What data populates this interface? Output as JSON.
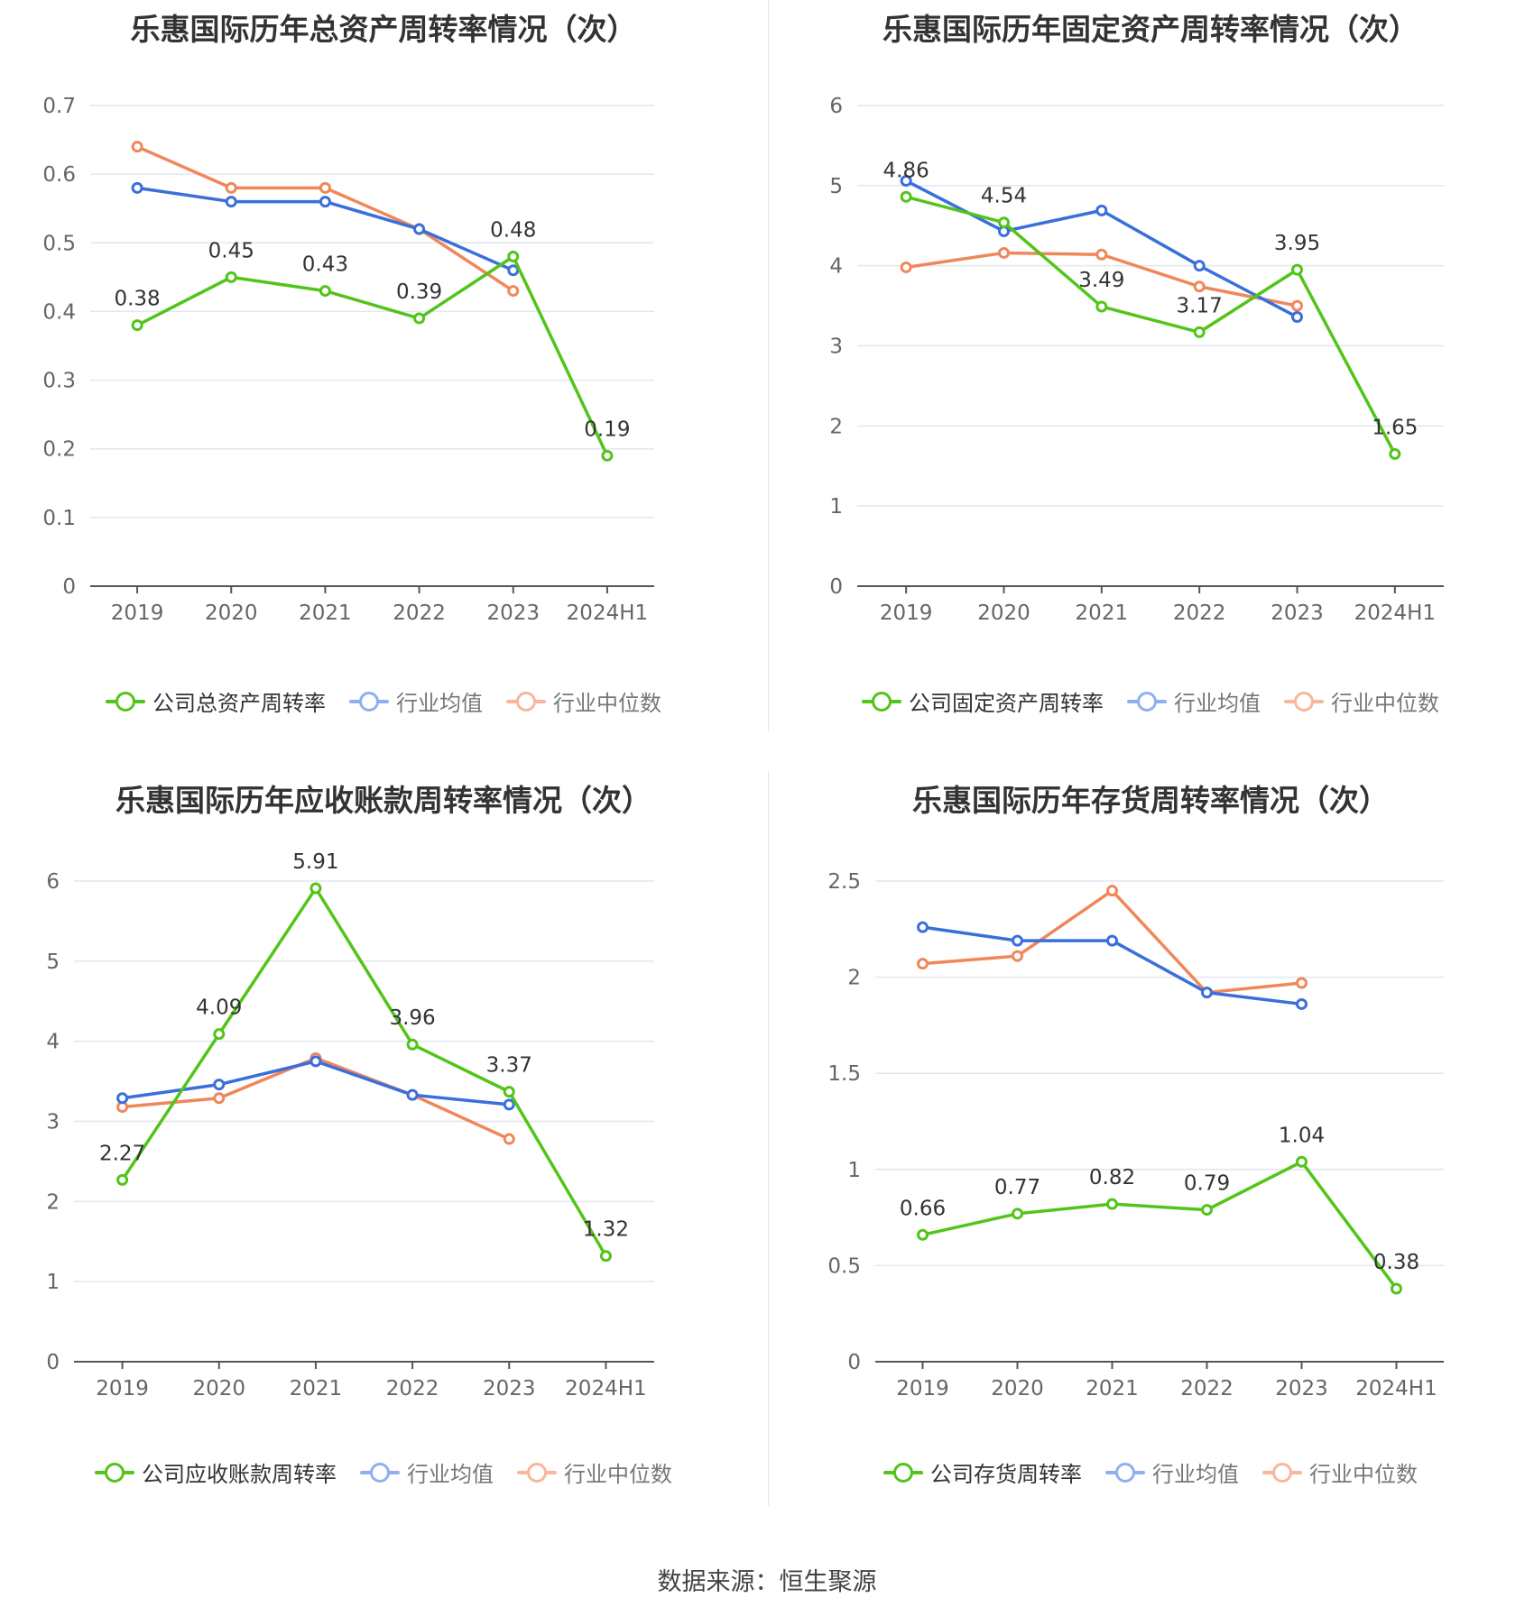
{
  "footer": {
    "source": "数据来源：恒生聚源"
  },
  "colors": {
    "company": "#52c41a",
    "industry_avg": "#3a6fdb",
    "industry_median": "#f0875a"
  },
  "chart_data": [
    {
      "type": "line",
      "title": "乐惠国际历年总资产周转率情况（次）",
      "categories": [
        "2019",
        "2020",
        "2021",
        "2022",
        "2023",
        "2024H1"
      ],
      "ylim": [
        0,
        0.7
      ],
      "yticks": [
        "0",
        "0.1",
        "0.2",
        "0.3",
        "0.4",
        "0.5",
        "0.6",
        "0.7"
      ],
      "grid": true,
      "legend_position": "bottom",
      "series": [
        {
          "name": "公司总资产周转率",
          "values": [
            0.38,
            0.45,
            0.43,
            0.39,
            0.48,
            0.19
          ],
          "labels": [
            "0.38",
            "0.45",
            "0.43",
            "0.39",
            "0.48",
            "0.19"
          ]
        },
        {
          "name": "行业均值",
          "values": [
            0.58,
            0.56,
            0.56,
            0.52,
            0.46,
            null
          ]
        },
        {
          "name": "行业中位数",
          "values": [
            0.64,
            0.58,
            0.58,
            0.52,
            0.43,
            null
          ]
        }
      ]
    },
    {
      "type": "line",
      "title": "乐惠国际历年固定资产周转率情况（次）",
      "categories": [
        "2019",
        "2020",
        "2021",
        "2022",
        "2023",
        "2024H1"
      ],
      "ylim": [
        0,
        6
      ],
      "yticks": [
        "0",
        "1",
        "2",
        "3",
        "4",
        "5",
        "6"
      ],
      "grid": true,
      "legend_position": "bottom",
      "series": [
        {
          "name": "公司固定资产周转率",
          "values": [
            4.86,
            4.54,
            3.49,
            3.17,
            3.95,
            1.65
          ],
          "labels": [
            "4.86",
            "4.54",
            "3.49",
            "3.17",
            "3.95",
            "1.65"
          ]
        },
        {
          "name": "行业均值",
          "values": [
            5.06,
            4.43,
            4.69,
            4.0,
            3.36,
            null
          ]
        },
        {
          "name": "行业中位数",
          "values": [
            3.98,
            4.16,
            4.14,
            3.74,
            3.5,
            null
          ]
        }
      ]
    },
    {
      "type": "line",
      "title": "乐惠国际历年应收账款周转率情况（次）",
      "categories": [
        "2019",
        "2020",
        "2021",
        "2022",
        "2023",
        "2024H1"
      ],
      "ylim": [
        0,
        6
      ],
      "yticks": [
        "0",
        "1",
        "2",
        "3",
        "4",
        "5",
        "6"
      ],
      "grid": true,
      "legend_position": "bottom",
      "series": [
        {
          "name": "公司应收账款周转率",
          "values": [
            2.27,
            4.09,
            5.91,
            3.96,
            3.37,
            1.32
          ],
          "labels": [
            "2.27",
            "4.09",
            "5.91",
            "3.96",
            "3.37",
            "1.32"
          ]
        },
        {
          "name": "行业均值",
          "values": [
            3.29,
            3.46,
            3.75,
            3.33,
            3.21,
            null
          ]
        },
        {
          "name": "行业中位数",
          "values": [
            3.18,
            3.29,
            3.79,
            3.33,
            2.78,
            null
          ]
        }
      ]
    },
    {
      "type": "line",
      "title": "乐惠国际历年存货周转率情况（次）",
      "categories": [
        "2019",
        "2020",
        "2021",
        "2022",
        "2023",
        "2024H1"
      ],
      "ylim": [
        0,
        2.5
      ],
      "yticks": [
        "0",
        "0.5",
        "1",
        "1.5",
        "2",
        "2.5"
      ],
      "grid": true,
      "legend_position": "bottom",
      "series": [
        {
          "name": "公司存货周转率",
          "values": [
            0.66,
            0.77,
            0.82,
            0.79,
            1.04,
            0.38
          ],
          "labels": [
            "0.66",
            "0.77",
            "0.82",
            "0.79",
            "1.04",
            "0.38"
          ]
        },
        {
          "name": "行业均值",
          "values": [
            2.26,
            2.19,
            2.19,
            1.92,
            1.86,
            null
          ]
        },
        {
          "name": "行业中位数",
          "values": [
            2.07,
            2.11,
            2.45,
            1.92,
            1.97,
            null
          ]
        }
      ]
    }
  ]
}
